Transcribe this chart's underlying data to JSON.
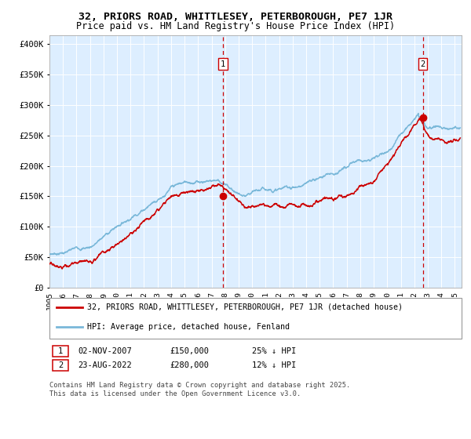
{
  "title1": "32, PRIORS ROAD, WHITTLESEY, PETERBOROUGH, PE7 1JR",
  "title2": "Price paid vs. HM Land Registry's House Price Index (HPI)",
  "ylabel_ticks": [
    "£0",
    "£50K",
    "£100K",
    "£150K",
    "£200K",
    "£250K",
    "£300K",
    "£350K",
    "£400K"
  ],
  "ytick_values": [
    0,
    50000,
    100000,
    150000,
    200000,
    250000,
    300000,
    350000,
    400000
  ],
  "ylim": [
    0,
    415000
  ],
  "xlim_start": 1995.0,
  "xlim_end": 2025.5,
  "hpi_color": "#7ab8d9",
  "price_color": "#cc0000",
  "plot_bg": "#ddeeff",
  "marker1_date": 2007.84,
  "marker1_price": 150000,
  "marker1_label": "1",
  "marker2_date": 2022.64,
  "marker2_price": 280000,
  "marker2_label": "2",
  "vline_color": "#cc0000",
  "legend_line1": "32, PRIORS ROAD, WHITTLESEY, PETERBOROUGH, PE7 1JR (detached house)",
  "legend_line2": "HPI: Average price, detached house, Fenland",
  "table_row1": [
    "1",
    "02-NOV-2007",
    "£150,000",
    "25% ↓ HPI"
  ],
  "table_row2": [
    "2",
    "23-AUG-2022",
    "£280,000",
    "12% ↓ HPI"
  ],
  "footer": "Contains HM Land Registry data © Crown copyright and database right 2025.\nThis data is licensed under the Open Government Licence v3.0.",
  "xlabel_years": [
    1995,
    1996,
    1997,
    1998,
    1999,
    2000,
    2001,
    2002,
    2003,
    2004,
    2005,
    2006,
    2007,
    2008,
    2009,
    2010,
    2011,
    2012,
    2013,
    2014,
    2015,
    2016,
    2017,
    2018,
    2019,
    2020,
    2021,
    2022,
    2023,
    2024,
    2025
  ]
}
